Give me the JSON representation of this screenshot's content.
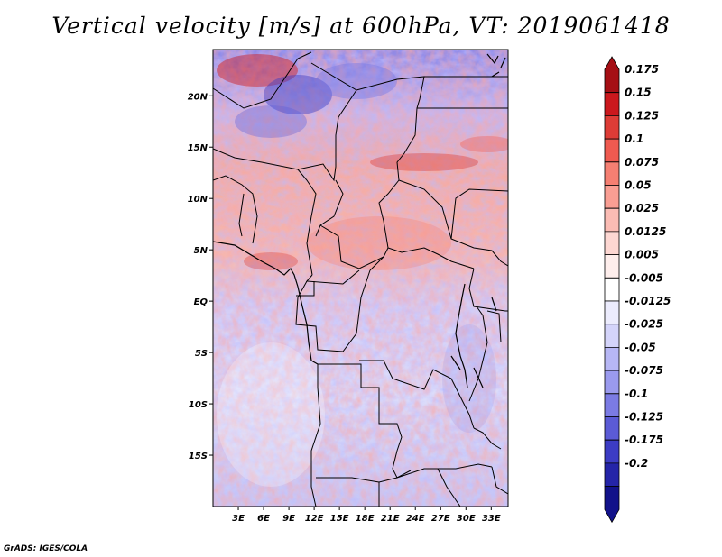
{
  "title": "Vertical velocity [m/s] at 600hPa, VT: 2019061418",
  "credit": "GrADS: IGES/COLA",
  "map": {
    "lon_range": [
      0,
      35
    ],
    "lat_range": [
      -20,
      24.5
    ],
    "lat_ticks": [
      {
        "value": 20,
        "label": "20N"
      },
      {
        "value": 15,
        "label": "15N"
      },
      {
        "value": 10,
        "label": "10N"
      },
      {
        "value": 5,
        "label": "5N"
      },
      {
        "value": 0,
        "label": "EQ"
      },
      {
        "value": -5,
        "label": "5S"
      },
      {
        "value": -10,
        "label": "10S"
      },
      {
        "value": -15,
        "label": "15S"
      }
    ],
    "lon_ticks": [
      {
        "value": 3,
        "label": "3E"
      },
      {
        "value": 6,
        "label": "6E"
      },
      {
        "value": 9,
        "label": "9E"
      },
      {
        "value": 12,
        "label": "12E"
      },
      {
        "value": 15,
        "label": "15E"
      },
      {
        "value": 18,
        "label": "18E"
      },
      {
        "value": 21,
        "label": "21E"
      },
      {
        "value": 24,
        "label": "24E"
      },
      {
        "value": 27,
        "label": "27E"
      },
      {
        "value": 30,
        "label": "30E"
      },
      {
        "value": 33,
        "label": "33E"
      }
    ]
  },
  "colorbar": {
    "levels": [
      "0.175",
      "0.15",
      "0.125",
      "0.1",
      "0.075",
      "0.05",
      "0.025",
      "0.0125",
      "0.005",
      "-0.005",
      "-0.0125",
      "-0.025",
      "-0.05",
      "-0.075",
      "-0.1",
      "-0.125",
      "-0.175",
      "-0.2"
    ],
    "colors": [
      "#a50f15",
      "#cb181d",
      "#dd3c36",
      "#ef5a50",
      "#f57f72",
      "#f99e93",
      "#fbbcb4",
      "#fdd7d2",
      "#feeeec",
      "#ffffff",
      "#ececfd",
      "#d4d4fa",
      "#b7b7f5",
      "#9a9aee",
      "#7b7be4",
      "#5b5bd6",
      "#3c3cc4",
      "#2424a8",
      "#12128a"
    ]
  }
}
